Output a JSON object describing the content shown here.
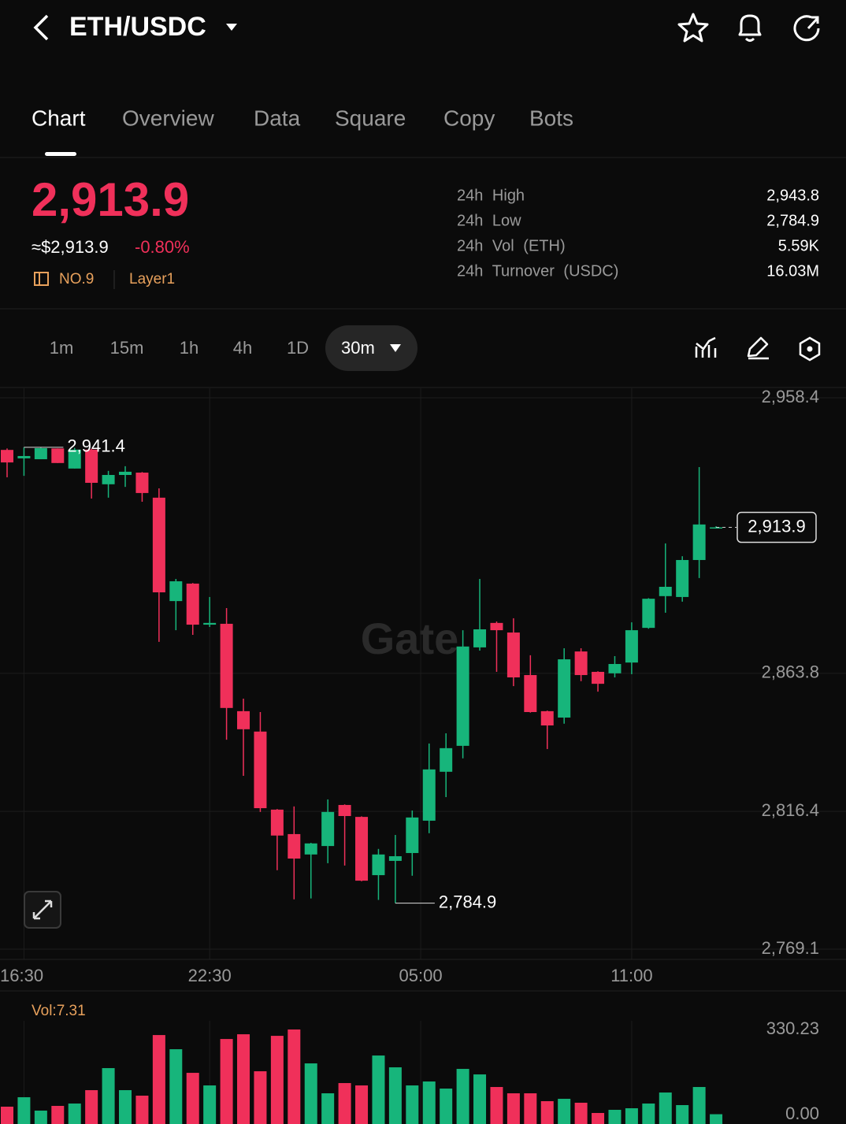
{
  "header": {
    "title": "ETH/USDC"
  },
  "tabs": [
    "Chart",
    "Overview",
    "Data",
    "Square",
    "Copy",
    "Bots"
  ],
  "ticker": {
    "price": "2,913.9",
    "usd_price": "≈$2,913.9",
    "change": "-0.80%",
    "rank": "NO.9",
    "tag": "Layer1",
    "stats": [
      {
        "label": "24h High",
        "value": "2,943.8"
      },
      {
        "label": "24h Low",
        "value": "2,784.9"
      },
      {
        "label": "24h Vol (ETH)",
        "value": "5.59K"
      },
      {
        "label": "24h Turnover (USDC)",
        "value": "16.03M"
      }
    ]
  },
  "timeframes": [
    "1m",
    "15m",
    "1h",
    "4h",
    "1D"
  ],
  "active_timeframe": "30m",
  "chart_data": [
    {
      "type": "candlestick",
      "watermark": "Gate",
      "grid": true,
      "up_color": "#17b57b",
      "down_color": "#f0305a",
      "open": [
        2940.5,
        2937.6,
        2937.3,
        2941.0,
        2934.1,
        2940.6,
        2928.7,
        2931.9,
        2932.7,
        2924.1,
        2888.6,
        2894.6,
        2880.5,
        2880.8,
        2850.8,
        2843.8,
        2817.0,
        2808.6,
        2801.6,
        2804.5,
        2818.6,
        2814.5,
        2794.5,
        2799.4,
        2802.1,
        2813.2,
        2830.0,
        2838.9,
        2872.7,
        2881.1,
        2877.8,
        2863.2,
        2850.8,
        2848.6,
        2871.3,
        2864.3,
        2863.8,
        2867.5,
        2879.4,
        2890.3,
        2890.0,
        2902.7,
        2913.5
      ],
      "high": [
        2941.0,
        2941.4,
        2941.3,
        2941.0,
        2941.2,
        2940.9,
        2933.3,
        2934.9,
        2932.9,
        2927.3,
        2896.2,
        2894.8,
        2890.0,
        2886.2,
        2855.1,
        2850.5,
        2817.2,
        2818.1,
        2805.6,
        2820.5,
        2818.8,
        2814.7,
        2803.5,
        2808.3,
        2816.7,
        2839.7,
        2843.2,
        2878.6,
        2896.2,
        2881.6,
        2882.7,
        2870.0,
        2851.0,
        2872.4,
        2872.4,
        2864.5,
        2869.7,
        2881.3,
        2889.6,
        2908.4,
        2904.0,
        2934.6,
        2914.3
      ],
      "low": [
        2931.1,
        2931.6,
        2937.3,
        2936.0,
        2934.1,
        2923.8,
        2924.1,
        2927.8,
        2922.7,
        2874.6,
        2878.6,
        2877.0,
        2879.7,
        2841.0,
        2828.6,
        2816.2,
        2796.2,
        2786.2,
        2786.5,
        2798.6,
        2797.8,
        2792.4,
        2786.0,
        2784.9,
        2794.3,
        2808.9,
        2821.3,
        2834.6,
        2871.6,
        2864.3,
        2859.4,
        2850.3,
        2837.8,
        2846.5,
        2861.1,
        2857.5,
        2862.4,
        2863.5,
        2879.1,
        2884.6,
        2888.4,
        2896.5,
        2913.5
      ],
      "close": [
        2936.2,
        2938.4,
        2941.1,
        2936.0,
        2940.6,
        2929.2,
        2931.9,
        2933.0,
        2925.7,
        2891.6,
        2895.4,
        2880.5,
        2881.1,
        2851.9,
        2844.6,
        2817.5,
        2808.1,
        2800.2,
        2805.4,
        2816.2,
        2814.8,
        2792.6,
        2801.6,
        2801.0,
        2814.3,
        2830.8,
        2838.1,
        2873.0,
        2878.9,
        2878.6,
        2862.4,
        2850.5,
        2845.9,
        2868.6,
        2863.2,
        2860.2,
        2867.0,
        2878.6,
        2889.4,
        2893.5,
        2902.7,
        2914.9,
        2913.9
      ],
      "ylim": [
        2769.1,
        2958.4
      ],
      "yticks": [
        {
          "value": 2958.4,
          "label": "2,958.4"
        },
        {
          "value": 2863.8,
          "label": "2,863.8"
        },
        {
          "value": 2816.4,
          "label": "2,816.4"
        },
        {
          "value": 2769.1,
          "label": "2,769.1"
        }
      ],
      "xticks": [
        {
          "value": 1,
          "label": "16:30"
        },
        {
          "value": 12,
          "label": "22:30"
        },
        {
          "value": 24.5,
          "label": "05:00"
        },
        {
          "value": 37,
          "label": "11:00"
        }
      ],
      "annotations": [
        {
          "value": 2941.4,
          "label": "2,941.4"
        },
        {
          "value": 2784.9,
          "label": "2,784.9"
        }
      ],
      "last_price": {
        "value": 2913.9,
        "label": "2,913.9"
      }
    },
    {
      "type": "bar",
      "title": "Vol:7.31",
      "values": [
        36,
        72,
        21,
        39,
        48,
        99,
        183,
        99,
        78,
        309,
        255,
        165,
        117,
        294,
        312,
        171,
        306,
        330.2,
        201,
        87,
        126,
        117,
        231,
        186,
        117,
        132,
        105,
        180,
        159,
        111,
        87,
        87,
        57,
        66,
        51,
        12,
        24,
        30,
        48,
        90,
        42,
        111,
        7.31
      ],
      "ylim": [
        0,
        330.23
      ],
      "yticks": [
        {
          "value": 330.23,
          "label": "330.23"
        },
        {
          "value": 0,
          "label": "0.00"
        }
      ]
    }
  ]
}
